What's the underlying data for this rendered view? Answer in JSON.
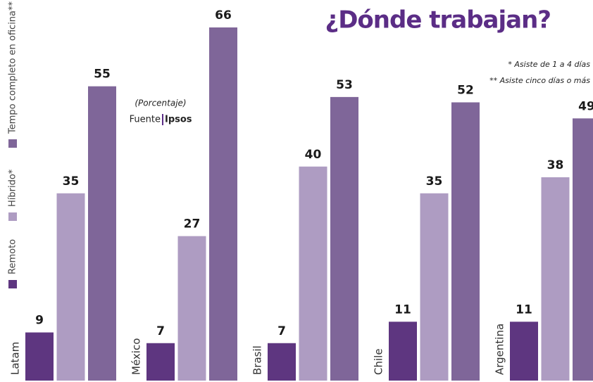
{
  "chart_data": {
    "type": "bar",
    "title": "¿Dónde trabajan?",
    "notes": [
      "* Asiste de 1 a 4 días",
      "** Asiste cinco días o más"
    ],
    "unit_note": "(Porcentaje)",
    "source": {
      "label": "Fuente",
      "name": "Ipsos"
    },
    "categories": [
      "Latam",
      "México",
      "Brasil",
      "Chile",
      "Argentina"
    ],
    "series": [
      {
        "name": "Remoto",
        "color": "#5e3680",
        "values": [
          9,
          7,
          7,
          11,
          11
        ]
      },
      {
        "name": "Híbrido*",
        "color": "#ae9cc2",
        "values": [
          35,
          27,
          40,
          35,
          38
        ]
      },
      {
        "name": "Tempo completo en oficina**",
        "color": "#7f6699",
        "values": [
          55,
          66,
          53,
          52,
          49
        ]
      }
    ]
  }
}
